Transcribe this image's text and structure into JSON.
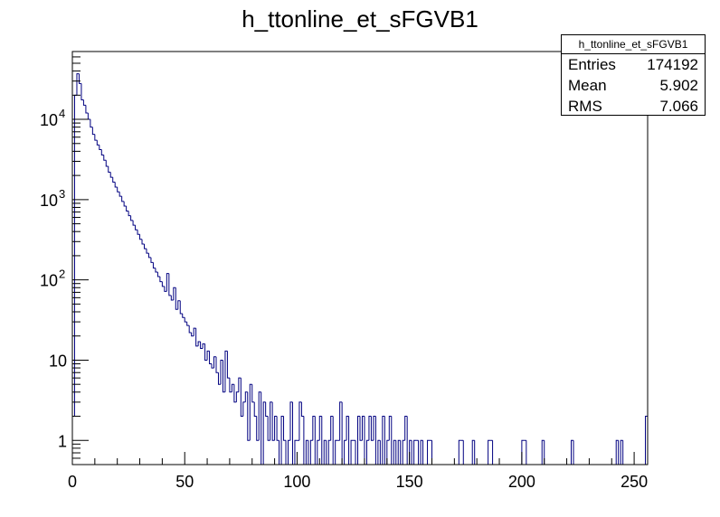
{
  "chart_data": {
    "type": "histogram",
    "title": "h_ttonline_et_sFGVB1",
    "xlabel": "",
    "ylabel": "",
    "xlim": [
      0,
      256
    ],
    "ylim": [
      0.5,
      70000
    ],
    "yscale": "log",
    "grid": false,
    "line_color": "#000080",
    "bin_width": 1,
    "x_ticks": [
      0,
      50,
      100,
      150,
      200,
      250
    ],
    "y_ticks": [
      {
        "value": 1,
        "label": "1",
        "exp": ""
      },
      {
        "value": 10,
        "label": "10",
        "exp": ""
      },
      {
        "value": 100,
        "label": "10",
        "exp": "2"
      },
      {
        "value": 1000,
        "label": "10",
        "exp": "3"
      },
      {
        "value": 10000,
        "label": "10",
        "exp": "4"
      }
    ],
    "bin_contents_start": [
      2,
      20000,
      37000,
      28000,
      17500,
      15000,
      12000,
      10000,
      8000,
      6500,
      5500,
      4800,
      4200,
      3600,
      3100,
      2600,
      2200,
      1900,
      1650,
      1430,
      1250,
      1100,
      950,
      830,
      720,
      630,
      550,
      480,
      420,
      370,
      320,
      280,
      245,
      215,
      190,
      165,
      140,
      125,
      110,
      95,
      83,
      72,
      120,
      64,
      56,
      80,
      43,
      55,
      38,
      34,
      30,
      27,
      22,
      20,
      25,
      15,
      17,
      14,
      16,
      10,
      13,
      9,
      8,
      11,
      7,
      5,
      10,
      4,
      13,
      6,
      4,
      5,
      3,
      4,
      6,
      2,
      3,
      4,
      1,
      5,
      3,
      2,
      1,
      4,
      0,
      3,
      2,
      1,
      3,
      1,
      2,
      1,
      0,
      2,
      1
    ],
    "sparse_bins": [
      {
        "x": 96,
        "count": 1
      },
      {
        "x": 97,
        "count": 3
      },
      {
        "x": 99,
        "count": 1
      },
      {
        "x": 100,
        "count": 1
      },
      {
        "x": 101,
        "count": 3
      },
      {
        "x": 102,
        "count": 2
      },
      {
        "x": 104,
        "count": 1
      },
      {
        "x": 106,
        "count": 1
      },
      {
        "x": 107,
        "count": 2
      },
      {
        "x": 109,
        "count": 1
      },
      {
        "x": 110,
        "count": 2
      },
      {
        "x": 112,
        "count": 1
      },
      {
        "x": 114,
        "count": 1
      },
      {
        "x": 115,
        "count": 2
      },
      {
        "x": 117,
        "count": 1
      },
      {
        "x": 118,
        "count": 1
      },
      {
        "x": 119,
        "count": 3
      },
      {
        "x": 121,
        "count": 1
      },
      {
        "x": 122,
        "count": 2
      },
      {
        "x": 124,
        "count": 1
      },
      {
        "x": 125,
        "count": 1
      },
      {
        "x": 127,
        "count": 2
      },
      {
        "x": 128,
        "count": 1
      },
      {
        "x": 129,
        "count": 2
      },
      {
        "x": 131,
        "count": 1
      },
      {
        "x": 132,
        "count": 2
      },
      {
        "x": 133,
        "count": 1
      },
      {
        "x": 134,
        "count": 2
      },
      {
        "x": 136,
        "count": 1
      },
      {
        "x": 138,
        "count": 2
      },
      {
        "x": 140,
        "count": 1
      },
      {
        "x": 141,
        "count": 2
      },
      {
        "x": 143,
        "count": 1
      },
      {
        "x": 145,
        "count": 1
      },
      {
        "x": 147,
        "count": 1
      },
      {
        "x": 148,
        "count": 2
      },
      {
        "x": 150,
        "count": 1
      },
      {
        "x": 152,
        "count": 1
      },
      {
        "x": 153,
        "count": 1
      },
      {
        "x": 155,
        "count": 1
      },
      {
        "x": 158,
        "count": 1
      },
      {
        "x": 159,
        "count": 1
      },
      {
        "x": 172,
        "count": 1
      },
      {
        "x": 173,
        "count": 1
      },
      {
        "x": 178,
        "count": 1
      },
      {
        "x": 185,
        "count": 1
      },
      {
        "x": 186,
        "count": 1
      },
      {
        "x": 200,
        "count": 1
      },
      {
        "x": 201,
        "count": 1
      },
      {
        "x": 209,
        "count": 1
      },
      {
        "x": 222,
        "count": 1
      },
      {
        "x": 242,
        "count": 1
      },
      {
        "x": 244,
        "count": 1
      },
      {
        "x": 255,
        "count": 2
      }
    ]
  },
  "stats_box": {
    "name": "h_ttonline_et_sFGVB1",
    "entries_label": "Entries",
    "entries_value": "174192",
    "mean_label": "Mean",
    "mean_value": "5.902",
    "rms_label": "RMS",
    "rms_value": "7.066"
  }
}
